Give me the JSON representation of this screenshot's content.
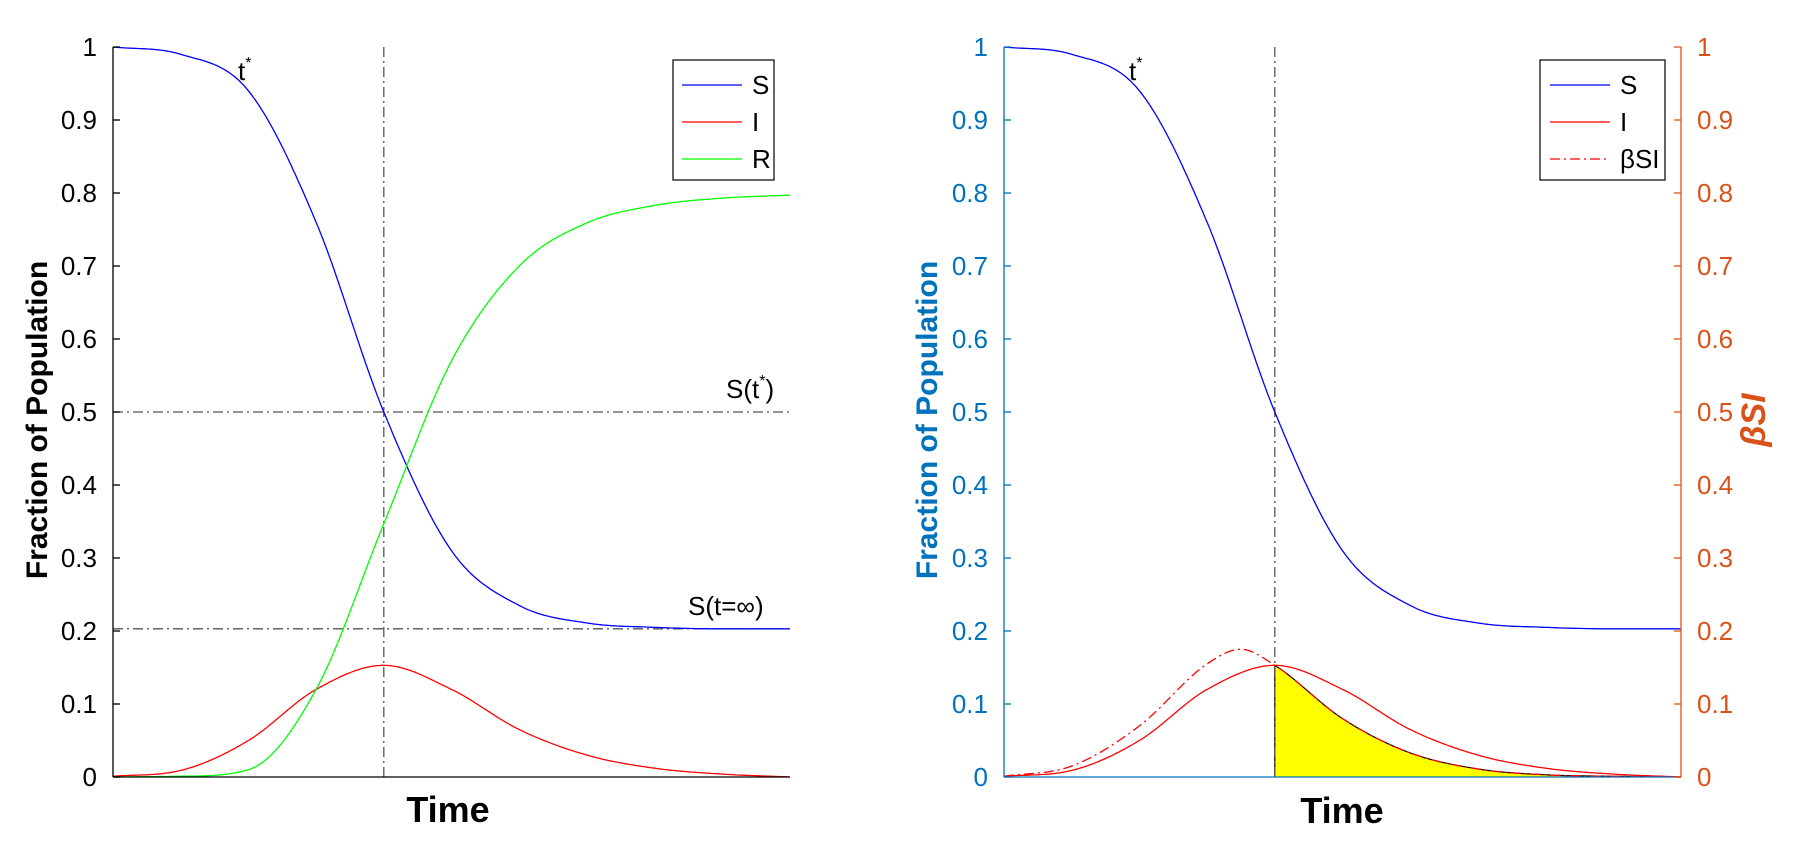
{
  "chart_data": [
    {
      "type": "line",
      "ylabel": "Fraction of Population",
      "xlabel": "Time",
      "ylim": [
        0,
        1
      ],
      "yticks": [
        0,
        0.1,
        0.2,
        0.3,
        0.4,
        0.5,
        0.6,
        0.7,
        0.8,
        0.9,
        1
      ],
      "ytick_labels": [
        "0",
        "0.1",
        "0.2",
        "0.3",
        "0.4",
        "0.5",
        "0.6",
        "0.7",
        "0.8",
        "0.9",
        "1"
      ],
      "x_ticks_shown": false,
      "legend": {
        "position": "top-right",
        "entries": [
          "S",
          "I",
          "R"
        ]
      },
      "series": [
        {
          "name": "S",
          "color": "#0000ff",
          "x": [
            0,
            1,
            2,
            3,
            4,
            5,
            6,
            7,
            8,
            9,
            10
          ],
          "y": [
            1.0,
            0.99,
            0.94,
            0.76,
            0.5,
            0.31,
            0.235,
            0.211,
            0.205,
            0.203,
            0.203
          ]
        },
        {
          "name": "I",
          "color": "#ff0000",
          "x": [
            0,
            1,
            2,
            3,
            4,
            5,
            6,
            7,
            8,
            9,
            10
          ],
          "y": [
            0.001,
            0.009,
            0.05,
            0.12,
            0.153,
            0.12,
            0.065,
            0.03,
            0.012,
            0.004,
            0.0
          ]
        },
        {
          "name": "R",
          "color": "#00ff00",
          "x": [
            0,
            1,
            2,
            3,
            4,
            5,
            6,
            7,
            8,
            9,
            10
          ],
          "y": [
            0.0,
            0.001,
            0.01,
            0.12,
            0.347,
            0.57,
            0.7,
            0.759,
            0.783,
            0.793,
            0.797
          ]
        }
      ],
      "reference_lines": {
        "t_star_label": "t",
        "t_star_superscript": "*",
        "t_star_x": 4,
        "s_tstar_y": 0.5,
        "s_tstar_label": "S(t",
        "s_tstar_label_sup": "*",
        "s_tstar_label_end": ")",
        "s_inf_y": 0.203,
        "s_inf_label": "S(t=∞)"
      }
    },
    {
      "type": "line",
      "ylabel": "Fraction of Population",
      "y2label": "βSI",
      "xlabel": "Time",
      "ylim": [
        0,
        1
      ],
      "y2lim": [
        0,
        1
      ],
      "yticks": [
        0,
        0.1,
        0.2,
        0.3,
        0.4,
        0.5,
        0.6,
        0.7,
        0.8,
        0.9,
        1
      ],
      "ytick_labels": [
        "0",
        "0.1",
        "0.2",
        "0.3",
        "0.4",
        "0.5",
        "0.6",
        "0.7",
        "0.8",
        "0.9",
        "1"
      ],
      "y2tick_labels": [
        "0",
        "0.1",
        "0.2",
        "0.3",
        "0.4",
        "0.5",
        "0.6",
        "0.7",
        "0.8",
        "0.9",
        "1"
      ],
      "left_axis_color": "#0072bd",
      "right_axis_color": "#d95319",
      "x_ticks_shown": false,
      "legend": {
        "position": "top-right",
        "entries": [
          "S",
          "I",
          "βSI"
        ]
      },
      "series": [
        {
          "name": "S",
          "color": "#0000ff",
          "x": [
            0,
            1,
            2,
            3,
            4,
            5,
            6,
            7,
            8,
            9,
            10
          ],
          "y": [
            1.0,
            0.99,
            0.94,
            0.76,
            0.5,
            0.31,
            0.235,
            0.211,
            0.205,
            0.203,
            0.203
          ]
        },
        {
          "name": "I",
          "color": "#ff0000",
          "x": [
            0,
            1,
            2,
            3,
            4,
            5,
            6,
            7,
            8,
            9,
            10
          ],
          "y": [
            0.001,
            0.009,
            0.05,
            0.12,
            0.153,
            0.12,
            0.065,
            0.03,
            0.012,
            0.004,
            0.0
          ]
        },
        {
          "name": "βSI",
          "color": "#ff0000",
          "dash": "dashdot",
          "axis": "right",
          "x": [
            0,
            1,
            2,
            3,
            3.5,
            4,
            5,
            6,
            7,
            8,
            9,
            10
          ],
          "y": [
            0.001,
            0.015,
            0.07,
            0.155,
            0.175,
            0.153,
            0.08,
            0.033,
            0.011,
            0.003,
            0.001,
            0.0
          ]
        }
      ],
      "shaded_area": {
        "color": "#ffff00",
        "from_x": 4,
        "to_x": 10,
        "series": "βSI"
      },
      "reference_lines": {
        "t_star_label": "t",
        "t_star_superscript": "*",
        "t_star_x": 4
      }
    }
  ]
}
